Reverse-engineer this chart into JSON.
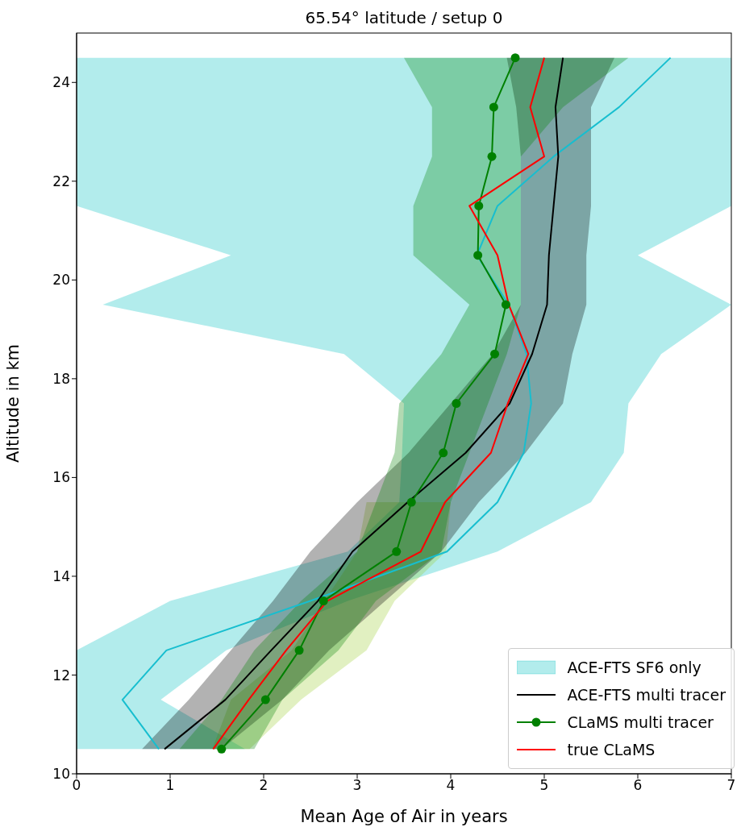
{
  "chart_data": {
    "type": "line",
    "orientation": "horizontal",
    "title": "65.54° latitude / setup 0",
    "xlabel": "Mean Age of Air in years",
    "ylabel": "Altitude in km",
    "xlim": [
      0,
      7
    ],
    "xticks": [
      0,
      1,
      2,
      3,
      4,
      5,
      6,
      7
    ],
    "ylim": [
      10,
      25
    ],
    "yticks": [
      10,
      12,
      14,
      16,
      18,
      20,
      22,
      24
    ],
    "grid": false,
    "legend": "bottom right",
    "series": [
      {
        "name": "ACE-FTS SF6 only",
        "color": "#00bfbf",
        "x": [
          10.5,
          11.5,
          12.5,
          13.5,
          14.5,
          15.5,
          16.5,
          17.5,
          18.5,
          19.5,
          20.5,
          21.5,
          22.5,
          23.5,
          24.5
        ],
        "values": [
          null,
          null,
          null,
          null,
          null,
          null,
          null,
          null,
          null,
          null,
          null,
          null,
          null,
          null,
          null
        ],
        "lower": [
          0,
          0,
          0,
          1.0,
          2.9,
          3.45,
          3.48,
          3.5,
          2.86,
          0.28,
          1.65,
          0,
          0,
          0,
          0
        ],
        "upper": [
          1.8,
          0.9,
          1.6,
          2.9,
          4.5,
          5.5,
          5.85,
          5.9,
          6.25,
          7,
          6.0,
          7,
          7,
          7,
          7
        ]
      },
      {
        "color": "#17becf",
        "x": [
          10.5,
          11.5,
          12.5,
          13.5,
          14.5,
          15.5,
          16.5,
          17.5,
          18.5,
          19.5,
          20.5,
          21.5,
          22.5,
          23.5,
          24.5
        ],
        "values": [
          0.88,
          0.49,
          0.96,
          2.5,
          3.96,
          4.5,
          4.78,
          4.86,
          4.81,
          4.62,
          4.28,
          4.5,
          5.1,
          5.8,
          6.35
        ]
      },
      {
        "color": "#9acd32",
        "x": [
          10.5,
          11.5,
          12.5,
          13.5,
          14.5,
          15.5
        ],
        "values": [
          null,
          null,
          null,
          null,
          null,
          null
        ],
        "lower": [
          1.45,
          1.65,
          2.3,
          2.65,
          3.0,
          3.1
        ],
        "upper": [
          1.85,
          2.4,
          3.1,
          3.4,
          3.95,
          4.0
        ]
      },
      {
        "name": "ACE-FTS multi tracer",
        "color": "#000000",
        "x": [
          10.5,
          11.5,
          12.5,
          13.5,
          14.5,
          15.5,
          16.5,
          17.5,
          18.5,
          19.5,
          20.5,
          21.5,
          22.5,
          23.5,
          24.5
        ],
        "values": [
          0.94,
          1.59,
          2.08,
          2.58,
          2.95,
          3.54,
          4.16,
          4.63,
          4.87,
          5.03,
          5.05,
          5.1,
          5.15,
          5.12,
          5.2
        ],
        "lower": [
          0.7,
          1.2,
          1.65,
          2.1,
          2.5,
          3.0,
          3.55,
          4.0,
          4.45,
          4.75,
          4.75,
          4.75,
          4.75,
          4.7,
          4.6
        ],
        "upper": [
          1.55,
          2.2,
          2.7,
          3.3,
          3.9,
          4.3,
          4.8,
          5.2,
          5.3,
          5.45,
          5.45,
          5.5,
          5.5,
          5.5,
          5.75
        ]
      },
      {
        "name": "CLaMS multi tracer",
        "color": "#008000",
        "marker": "circle",
        "x": [
          10.5,
          11.5,
          12.5,
          13.5,
          14.5,
          15.5,
          16.5,
          17.5,
          18.5,
          19.5,
          20.5,
          21.5,
          22.5,
          23.5,
          24.5
        ],
        "values": [
          1.55,
          2.02,
          2.38,
          2.64,
          3.42,
          3.58,
          3.92,
          4.06,
          4.47,
          4.59,
          4.29,
          4.3,
          4.44,
          4.46,
          4.69
        ],
        "lower": [
          1.1,
          1.55,
          1.9,
          2.4,
          3.0,
          3.2,
          3.4,
          3.45,
          3.9,
          4.2,
          3.6,
          3.6,
          3.8,
          3.8,
          3.5
        ],
        "upper": [
          1.9,
          2.2,
          2.8,
          3.2,
          3.9,
          4.0,
          4.2,
          4.4,
          4.6,
          4.75,
          4.75,
          4.75,
          4.75,
          5.2,
          5.9
        ]
      },
      {
        "name": "true CLaMS",
        "color": "#ff0000",
        "x": [
          10.5,
          11.5,
          12.5,
          13.5,
          14.5,
          15.5,
          16.5,
          17.5,
          18.5,
          19.5,
          20.5,
          21.5,
          22.5,
          23.5,
          24.5
        ],
        "values": [
          1.46,
          1.84,
          2.24,
          2.68,
          3.68,
          3.94,
          4.43,
          4.61,
          4.83,
          4.62,
          4.5,
          4.2,
          5.0,
          4.85,
          5.0
        ]
      }
    ]
  }
}
